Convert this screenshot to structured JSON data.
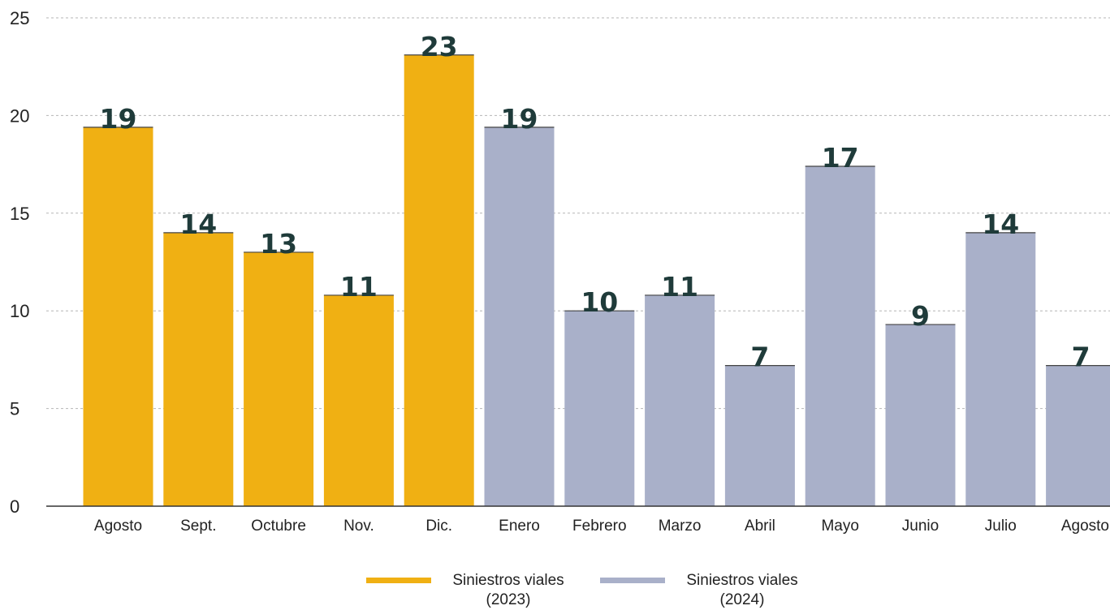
{
  "chart_data": {
    "type": "bar",
    "title": "",
    "xlabel": "",
    "ylabel": "",
    "ylim": [
      0,
      25
    ],
    "yticks": [
      0,
      5,
      10,
      15,
      20,
      25
    ],
    "grid": true,
    "legend_position": "bottom-center",
    "categories": [
      "Agosto",
      "Sept.",
      "Octubre",
      "Nov.",
      "Dic.",
      "Enero",
      "Febrero",
      "Marzo",
      "Abril",
      "Mayo",
      "Junio",
      "Julio",
      "Agosto"
    ],
    "values": [
      19.4,
      14.0,
      13.0,
      10.8,
      23.1,
      19.4,
      10.0,
      10.8,
      7.2,
      17.4,
      9.3,
      14.0,
      7.2
    ],
    "data_labels": [
      "19",
      "14",
      "13",
      "11",
      "23",
      "19",
      "10",
      "11",
      "7",
      "17",
      "9",
      "14",
      "7"
    ],
    "bar_series": [
      0,
      0,
      0,
      0,
      0,
      1,
      1,
      1,
      1,
      1,
      1,
      1,
      1
    ],
    "series": [
      {
        "name": "Siniestros viales\n(2023)",
        "color": "#f0b013"
      },
      {
        "name": "Siniestros viales\n(2024)",
        "color": "#a9b0c9"
      }
    ]
  }
}
